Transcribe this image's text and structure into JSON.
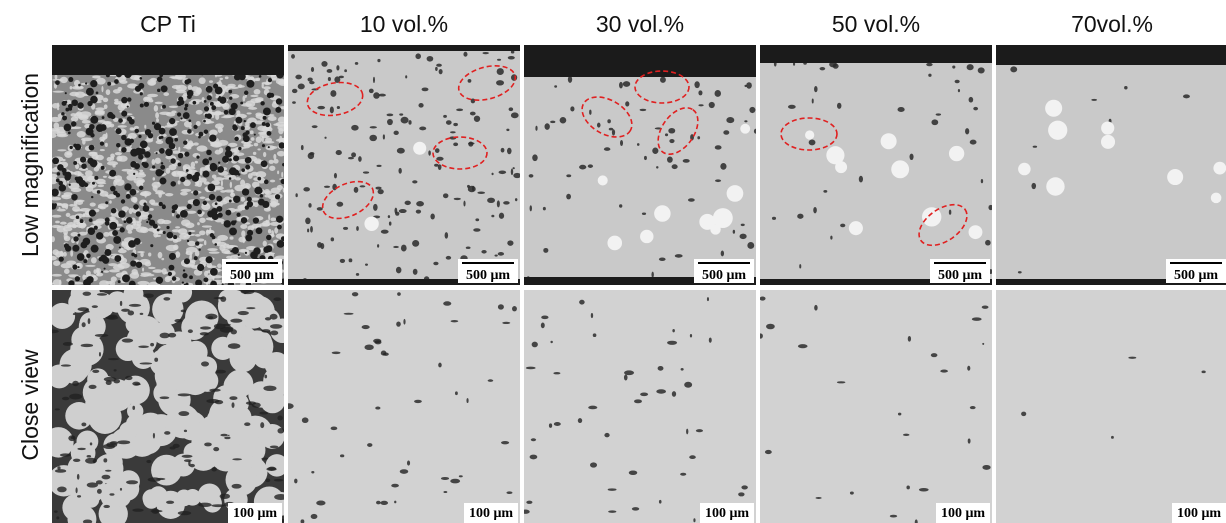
{
  "row_labels": [
    "Low magnification",
    "Close view"
  ],
  "columns": [
    {
      "header": "CP Ti",
      "scale_low": "500 μm",
      "scale_close": "100 μm"
    },
    {
      "header": "10 vol.%",
      "scale_low": "500 μm",
      "scale_close": "100 μm"
    },
    {
      "header": "30 vol.%",
      "scale_low": "500 μm",
      "scale_close": "100 μm"
    },
    {
      "header": "50 vol.%",
      "scale_low": "500 μm",
      "scale_close": "100 μm"
    },
    {
      "header": "70vol.%",
      "scale_low": "500 μm",
      "scale_close": "100 μm"
    }
  ]
}
